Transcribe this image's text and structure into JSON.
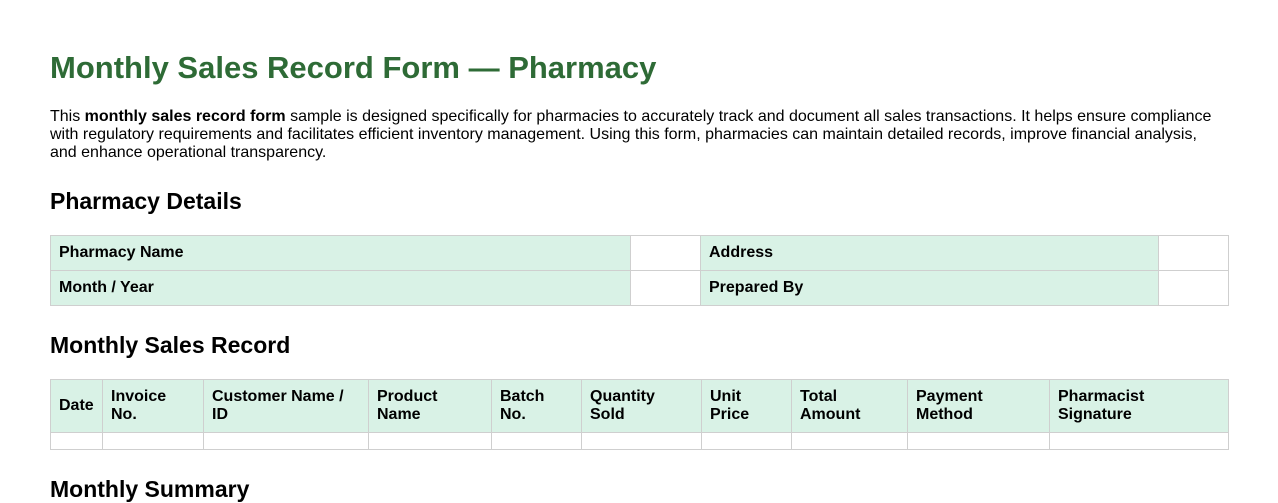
{
  "title": "Monthly Sales Record Form — Pharmacy",
  "intro": {
    "before": "This ",
    "bold": "monthly sales record form",
    "after": " sample is designed specifically for pharmacies to accurately track and document all sales transactions. It helps ensure compliance with regulatory requirements and facilitates efficient inventory management. Using this form, pharmacies can maintain detailed records, improve financial analysis, and enhance operational transparency."
  },
  "details": {
    "heading": "Pharmacy Details",
    "fields": [
      "Pharmacy Name",
      "Address",
      "Month / Year",
      "Prepared By"
    ],
    "values": [
      "",
      "",
      "",
      ""
    ]
  },
  "sales": {
    "heading": "Monthly Sales Record",
    "columns": [
      "Date",
      "Invoice No.",
      "Customer Name / ID",
      "Product Name",
      "Batch No.",
      "Quantity Sold",
      "Unit Price",
      "Total Amount",
      "Payment Method",
      "Pharmacist Signature"
    ]
  },
  "summary": {
    "heading": "Monthly Summary"
  },
  "colors": {
    "title": "#2e6b36",
    "label_bg": "#d9f2e6",
    "border": "#cfcfcf"
  }
}
